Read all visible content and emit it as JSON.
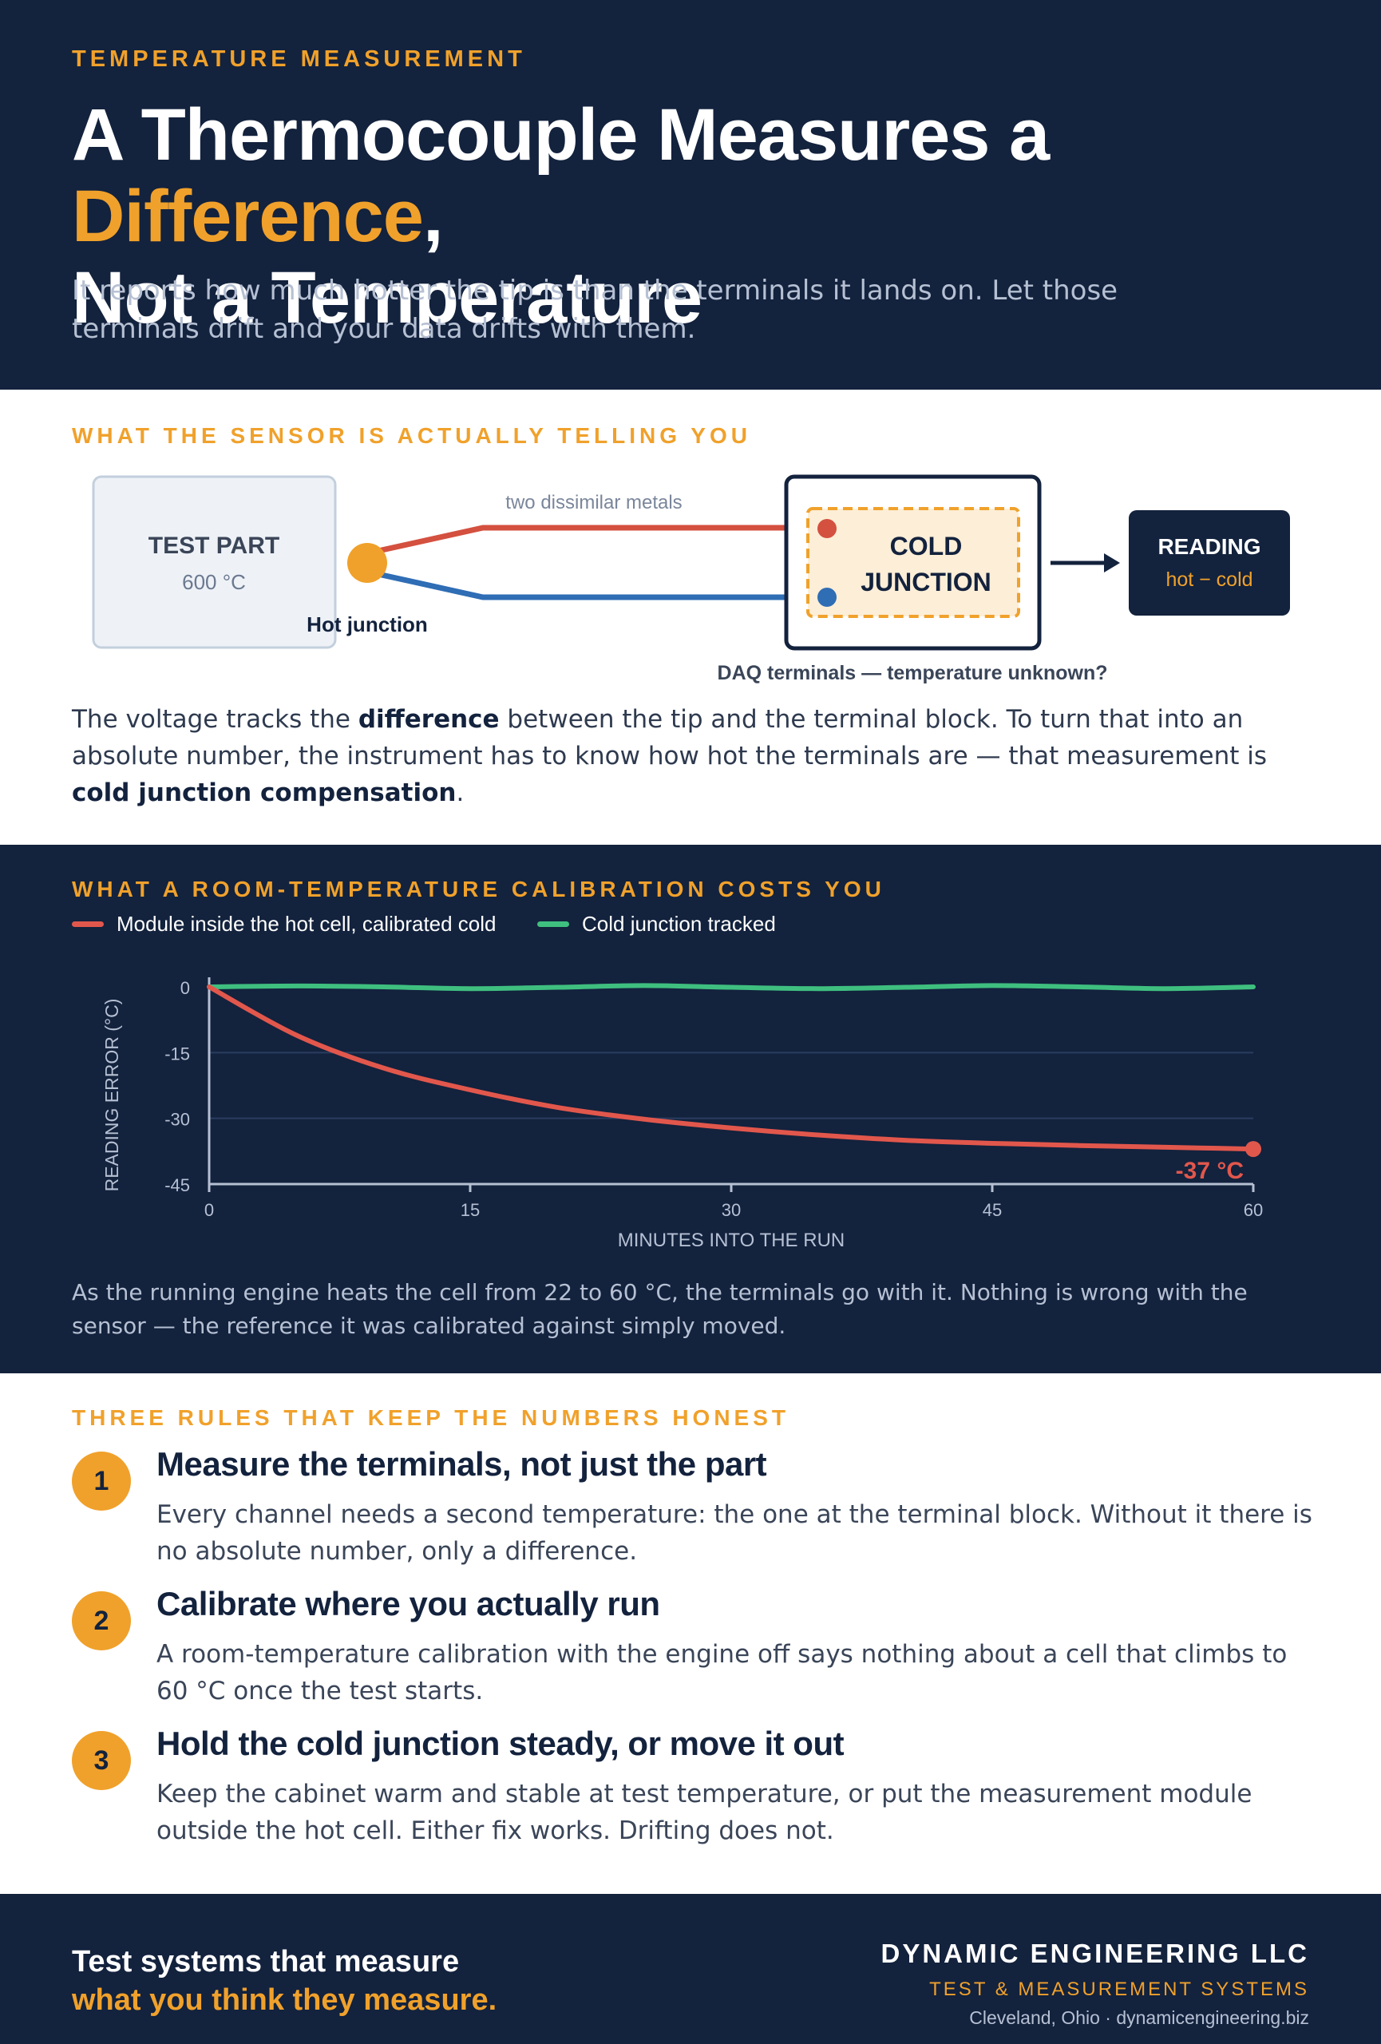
{
  "header": {
    "kicker": "TEMPERATURE MEASUREMENT",
    "title_pre": "A Thermocouple Measures a ",
    "title_highlight": "Difference",
    "title_post": ",",
    "title_line2": "Not a Temperature",
    "subtitle": "It reports how much hotter the tip is than the terminals it lands on. Let those terminals drift and your data drifts with them."
  },
  "sensor_section": {
    "kicker": "WHAT THE SENSOR IS ACTUALLY TELLING YOU",
    "test_part_label": "TEST PART",
    "test_part_temp": "600 °C",
    "hot_junction_label": "Hot junction",
    "wire_label": "two dissimilar metals",
    "cold_junction_line1": "COLD",
    "cold_junction_line2": "JUNCTION",
    "daq_label": "DAQ terminals — temperature unknown?",
    "reading_label": "READING",
    "reading_formula": "hot − cold",
    "body_1": "The voltage tracks the ",
    "body_bold_1": "difference",
    "body_2": " between the tip and the terminal block. To turn that into an absolute number, the instrument has to know how hot the terminals are — that measurement is ",
    "body_bold_2": "cold junction compensation",
    "body_3": "."
  },
  "calibration_section": {
    "kicker": "WHAT A ROOM-TEMPERATURE CALIBRATION COSTS YOU",
    "body": "As the running engine heats the cell from 22 to 60 °C, the terminals go with it. Nothing is wrong with the sensor — the reference it was calibrated against simply moved."
  },
  "chart_data": {
    "type": "line",
    "xlabel": "MINUTES INTO THE RUN",
    "ylabel": "READING ERROR (°C)",
    "xlim": [
      0,
      60
    ],
    "ylim": [
      -45,
      0
    ],
    "x_ticks": [
      "0",
      "15",
      "30",
      "45",
      "60"
    ],
    "y_ticks": [
      "0",
      "-15",
      "-30",
      "-45"
    ],
    "grid": true,
    "legend_position": "top-left",
    "end_annotation": "-37 °C",
    "colors": {
      "red": "#e2574c",
      "green": "#3fbf7f"
    },
    "series": [
      {
        "name": "Module inside the hot cell, calibrated cold",
        "color": "#e2574c",
        "x": [
          0,
          5,
          10,
          15,
          20,
          25,
          30,
          35,
          40,
          45,
          50,
          55,
          60
        ],
        "y": [
          0,
          -11,
          -18.5,
          -23.5,
          -27.5,
          -30.2,
          -32.2,
          -33.8,
          -35,
          -35.7,
          -36.2,
          -36.6,
          -37
        ]
      },
      {
        "name": "Cold junction tracked",
        "color": "#3fbf7f",
        "x": [
          0,
          5,
          10,
          15,
          20,
          25,
          30,
          35,
          40,
          45,
          50,
          55,
          60
        ],
        "y": [
          0,
          0.2,
          0,
          -0.4,
          -0.1,
          0.3,
          -0.1,
          -0.4,
          -0.1,
          0.3,
          0,
          -0.4,
          0
        ]
      }
    ]
  },
  "rules_section": {
    "kicker": "THREE RULES THAT KEEP THE NUMBERS HONEST",
    "rules": [
      {
        "num": "1",
        "title": "Measure the terminals, not just the part",
        "text": "Every channel needs a second temperature: the one at the terminal block. Without it there is no absolute number, only a difference."
      },
      {
        "num": "2",
        "title": "Calibrate where you actually run",
        "text": "A room-temperature calibration with the engine off says nothing about a cell that climbs to 60 °C once the test starts."
      },
      {
        "num": "3",
        "title": "Hold the cold junction steady, or move it out",
        "text": "Keep the cabinet warm and stable at test temperature, or put the measurement module outside the hot cell. Either fix works. Drifting does not."
      }
    ]
  },
  "footer": {
    "tagline_line1": "Test systems that measure",
    "tagline_line2": "what you think they measure.",
    "company": "DYNAMIC ENGINEERING LLC",
    "division": "TEST & MEASUREMENT SYSTEMS",
    "location": "Cleveland, Ohio · dynamicengineering.biz"
  }
}
